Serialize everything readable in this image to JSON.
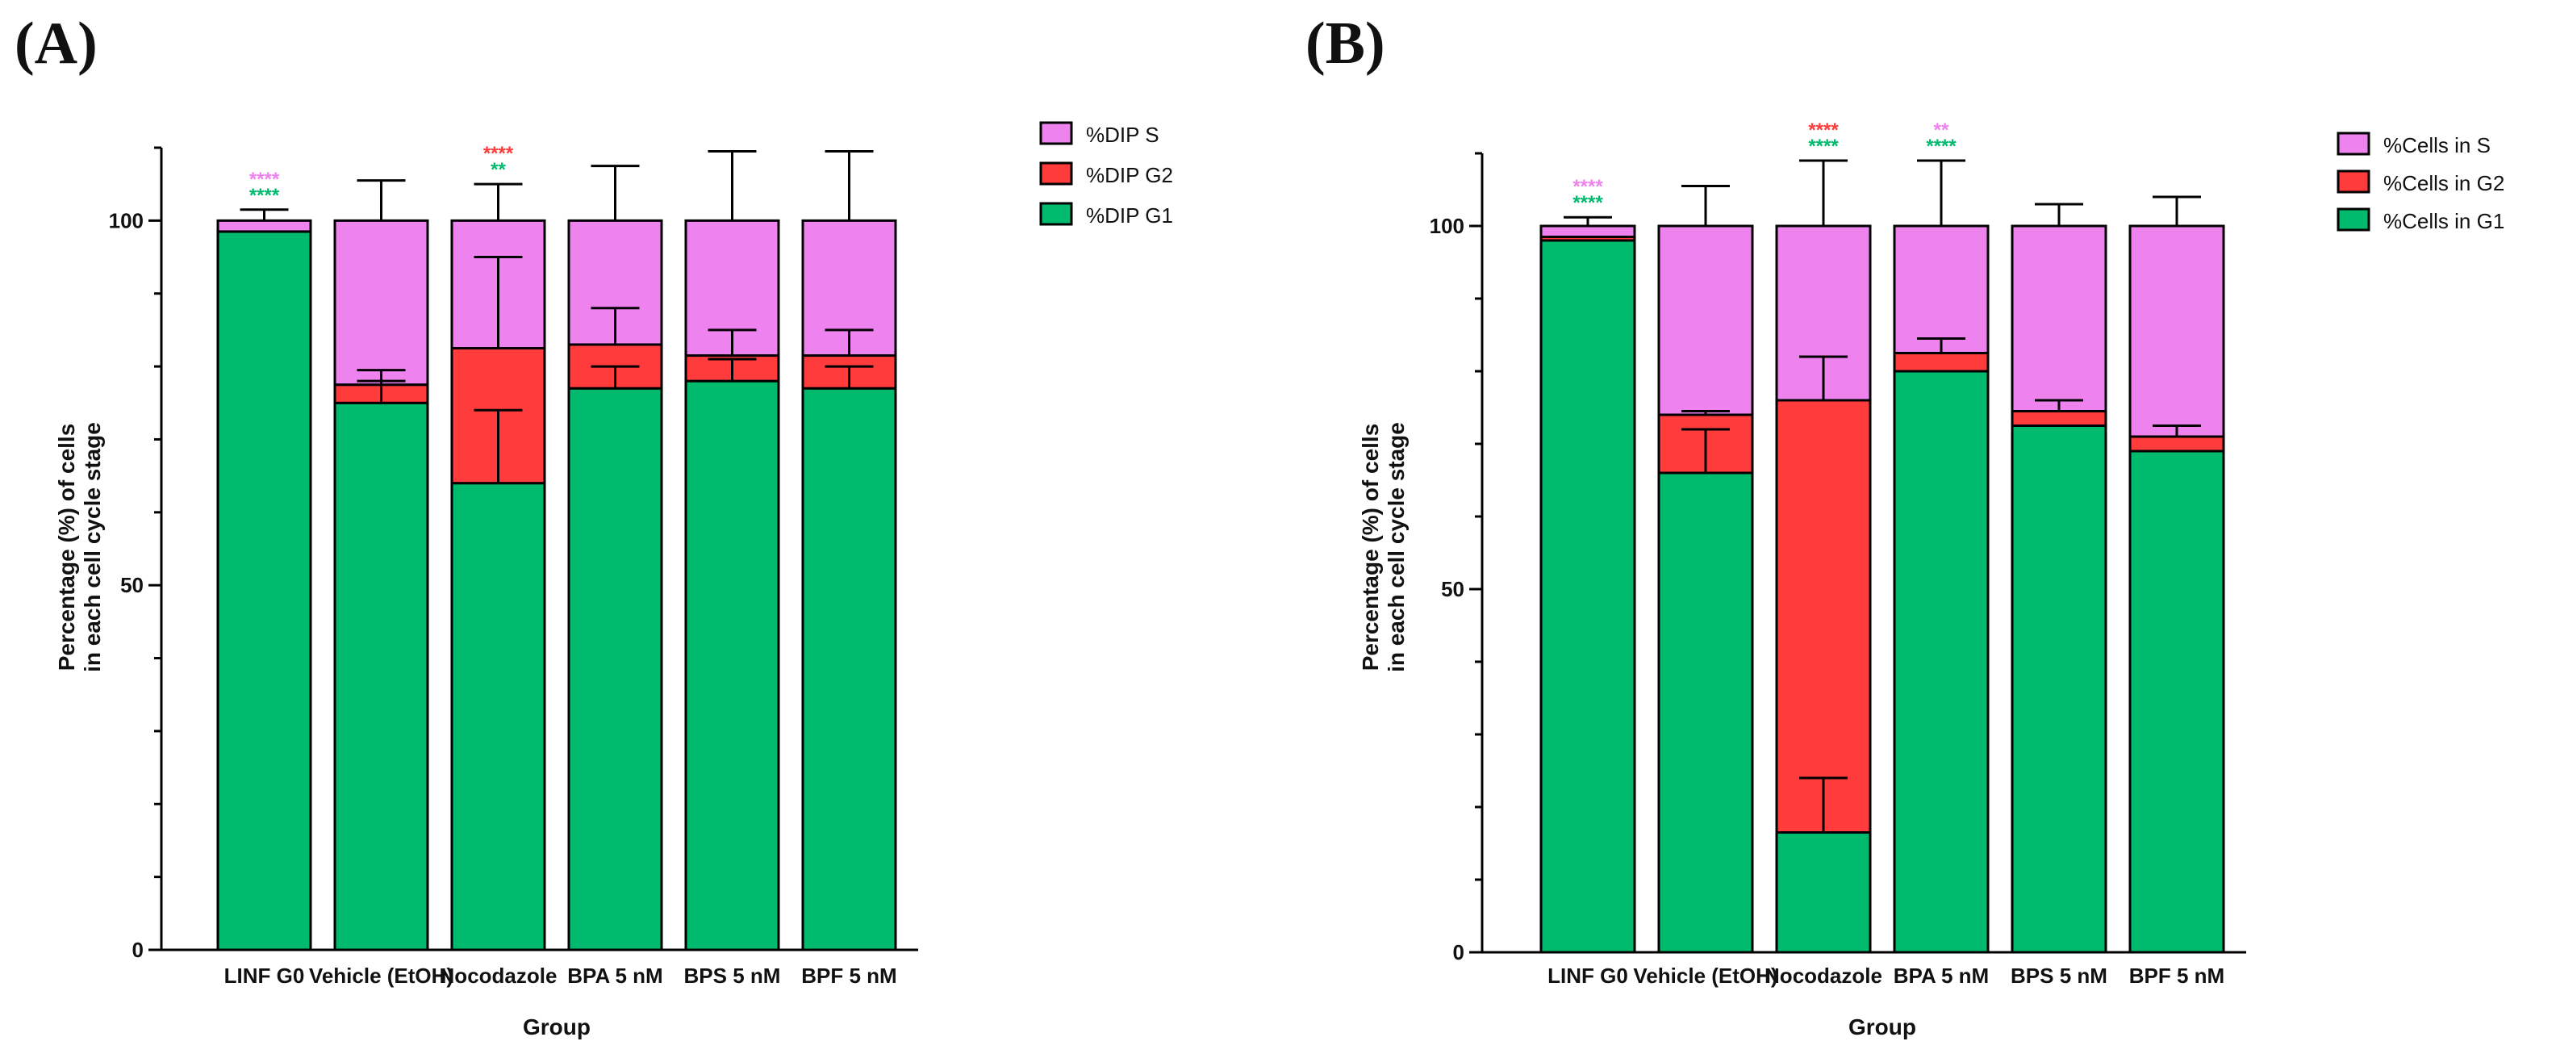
{
  "colors": {
    "S": "#EE82EE",
    "G2": "#FF3B3B",
    "G1": "#00BA6E",
    "stroke": "#000000"
  },
  "chart_data": [
    {
      "panel": "(A)",
      "type": "bar",
      "stacked": true,
      "xlabel": "Group",
      "ylabel": "Percentage (%) of cells\nin each cell cycle stage",
      "ylim": [
        0,
        110
      ],
      "yticks": [
        0,
        50,
        100
      ],
      "legend_position": "top-right",
      "categories": [
        "LINF G0",
        "Vehicle (EtOH)",
        "Nocodazole",
        "BPA 5 nM",
        "BPS 5 nM",
        "BPF 5 nM"
      ],
      "series": [
        {
          "name": "%DIP G1",
          "key": "G1",
          "values": [
            98.5,
            75,
            64,
            77,
            78,
            77
          ],
          "error": [
            0,
            3,
            10,
            3,
            3,
            3
          ]
        },
        {
          "name": "%DIP G2",
          "key": "G2",
          "values": [
            0,
            2.5,
            18.5,
            6,
            3.5,
            4.5
          ],
          "error": [
            0,
            2,
            12.5,
            5,
            3.5,
            3.5
          ]
        },
        {
          "name": "%DIP S",
          "key": "S",
          "values": [
            1.5,
            22.5,
            17.5,
            17,
            18.5,
            18.5
          ],
          "error": [
            1.5,
            5.5,
            5,
            7.5,
            9.5,
            9.5
          ]
        }
      ],
      "annotations": [
        {
          "category": "LINF G0",
          "lines": [
            {
              "text": "****",
              "color": "#EE82EE"
            },
            {
              "text": "****",
              "color": "#00BA6E"
            }
          ]
        },
        {
          "category": "Nocodazole",
          "lines": [
            {
              "text": "****",
              "color": "#FF3B3B"
            },
            {
              "text": "**",
              "color": "#00BA6E"
            }
          ]
        }
      ]
    },
    {
      "panel": "(B)",
      "type": "bar",
      "stacked": true,
      "xlabel": "Group",
      "ylabel": "Percentage (%) of cells\nin each cell cycle stage",
      "ylim": [
        0,
        110
      ],
      "yticks": [
        0,
        50,
        100
      ],
      "legend_position": "top-right",
      "categories": [
        "LINF G0",
        "Vehicle (EtOH)",
        "Nocodazole",
        "BPA 5 nM",
        "BPS 5 nM",
        "BPF 5 nM"
      ],
      "series": [
        {
          "name": "%Cells in G1",
          "key": "G1",
          "values": [
            98,
            66,
            16.5,
            80,
            72.5,
            69
          ],
          "error": [
            0,
            6,
            7.5,
            0,
            0,
            0
          ]
        },
        {
          "name": "%Cells in G2",
          "key": "G2",
          "values": [
            0.5,
            8,
            59.5,
            2.5,
            2,
            2
          ],
          "error": [
            0,
            0.5,
            6,
            2,
            1.5,
            1.5
          ]
        },
        {
          "name": "%Cells in S",
          "key": "S",
          "values": [
            1.5,
            26,
            24,
            17.5,
            25.5,
            29
          ],
          "error": [
            1.2,
            5.5,
            9,
            9,
            3,
            4
          ]
        }
      ],
      "annotations": [
        {
          "category": "LINF G0",
          "lines": [
            {
              "text": "****",
              "color": "#EE82EE"
            },
            {
              "text": "****",
              "color": "#00BA6E"
            }
          ]
        },
        {
          "category": "Nocodazole",
          "lines": [
            {
              "text": "****",
              "color": "#FF3B3B"
            },
            {
              "text": "****",
              "color": "#00BA6E"
            }
          ]
        },
        {
          "category": "BPA 5 nM",
          "lines": [
            {
              "text": "**",
              "color": "#EE82EE"
            },
            {
              "text": "****",
              "color": "#00BA6E"
            }
          ]
        }
      ]
    }
  ]
}
